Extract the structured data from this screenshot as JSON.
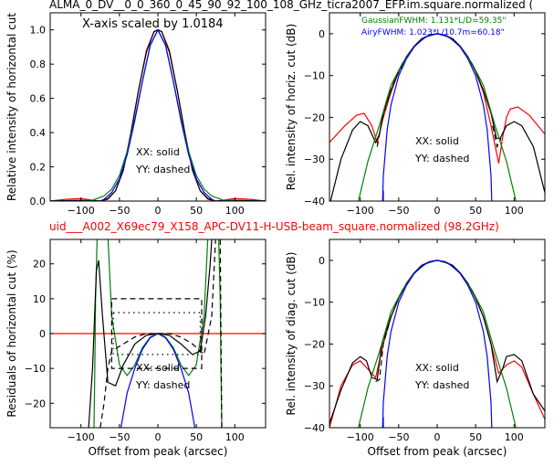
{
  "figure": {
    "top_title": "ALMA_0_DV__0_0_360_0_45_90_92_100_108_GHz_ticra2007_EFP.im.square.normalized (",
    "middle_title": "uid___A002_X69ec79_X158_APC-DV11-H-USB-beam_square.normalized (98.2GHz)",
    "middle_title_color": "#ff0000"
  },
  "colors": {
    "black": "#000000",
    "red": "#ff0000",
    "green": "#008000",
    "blue": "#0000ff"
  },
  "chart_data": [
    {
      "type": "line",
      "panel": "top-left",
      "annotation": "X-axis scaled by 1.0184",
      "xlabel": "",
      "ylabel": "Relative intensity of horizontal cut",
      "xlim": [
        -140,
        140
      ],
      "ylim": [
        0,
        1.1
      ],
      "xticks": [
        -100,
        -50,
        0,
        50,
        100
      ],
      "yticks": [
        0.0,
        0.2,
        0.4,
        0.6,
        0.8,
        1.0
      ],
      "xtick_labels": [
        "−100",
        "−50",
        "0",
        "50",
        "100"
      ],
      "ytick_labels": [
        "0.0",
        "0.2",
        "0.4",
        "0.6",
        "0.8",
        "1.0"
      ],
      "legend_text": [
        "XX: solid",
        "YY: dashed"
      ],
      "series": [
        {
          "color": "red",
          "style": "solid",
          "x": [
            -140,
            -120,
            -100,
            -85,
            -75,
            -65,
            -55,
            -45,
            -35,
            -25,
            -15,
            -5,
            0,
            5,
            15,
            25,
            35,
            45,
            55,
            65,
            75,
            85,
            100,
            120,
            140
          ],
          "y": [
            0.0,
            0.01,
            0.015,
            0.005,
            0.0,
            0.01,
            0.06,
            0.18,
            0.4,
            0.65,
            0.88,
            0.99,
            1.0,
            0.99,
            0.88,
            0.65,
            0.4,
            0.18,
            0.06,
            0.01,
            0.0,
            0.005,
            0.015,
            0.01,
            0.0
          ]
        },
        {
          "color": "black",
          "style": "solid",
          "x": [
            -140,
            -100,
            -85,
            -75,
            -65,
            -55,
            -45,
            -35,
            -25,
            -15,
            -5,
            0,
            5,
            15,
            25,
            35,
            45,
            55,
            65,
            75,
            85,
            100,
            140
          ],
          "y": [
            0.0,
            0.005,
            0.002,
            0.0,
            0.015,
            0.06,
            0.18,
            0.4,
            0.65,
            0.87,
            0.99,
            1.0,
            0.99,
            0.87,
            0.65,
            0.4,
            0.18,
            0.06,
            0.015,
            0.0,
            0.002,
            0.005,
            0.0
          ]
        },
        {
          "color": "green",
          "style": "solid",
          "x": [
            -140,
            -100,
            -85,
            -70,
            -60,
            -50,
            -40,
            -30,
            -20,
            -10,
            0,
            10,
            20,
            30,
            40,
            50,
            60,
            70,
            85,
            100,
            140
          ],
          "y": [
            0.0,
            0.0,
            0.005,
            0.03,
            0.07,
            0.15,
            0.29,
            0.48,
            0.7,
            0.91,
            1.0,
            0.91,
            0.7,
            0.48,
            0.29,
            0.15,
            0.07,
            0.03,
            0.005,
            0.0,
            0.0
          ]
        },
        {
          "color": "blue",
          "style": "solid",
          "x": [
            -140,
            -75,
            -70,
            -60,
            -50,
            -40,
            -30,
            -20,
            -10,
            0,
            10,
            20,
            30,
            40,
            50,
            60,
            70,
            75,
            140
          ],
          "y": [
            0.0,
            0.0,
            0.01,
            0.05,
            0.13,
            0.27,
            0.47,
            0.7,
            0.91,
            1.0,
            0.91,
            0.7,
            0.47,
            0.27,
            0.13,
            0.05,
            0.01,
            0.0,
            0.0
          ]
        }
      ]
    },
    {
      "type": "line",
      "panel": "top-right",
      "xlabel": "",
      "ylabel": "Rel. intensity of horiz. cut (dB)",
      "xlim": [
        -140,
        140
      ],
      "ylim": [
        -40,
        5
      ],
      "xticks": [
        -100,
        -50,
        0,
        50,
        100
      ],
      "yticks": [
        0,
        -10,
        -20,
        -30,
        -40
      ],
      "xtick_labels": [
        "−100",
        "−50",
        "0",
        "50",
        "100"
      ],
      "ytick_labels": [
        "0",
        "−10",
        "−20",
        "−30",
        "−40"
      ],
      "fit_labels": [
        {
          "text": "GaussianFWHM: 1.131*L/D=59.35\"",
          "color": "green"
        },
        {
          "text": "AiryFWHM: 1.023*L/10.7m=60.18\"",
          "color": "blue"
        }
      ],
      "legend_text": [
        "XX: solid",
        "YY: dashed"
      ],
      "series": [
        {
          "color": "red",
          "style": "solid",
          "x": [
            -140,
            -120,
            -105,
            -95,
            -85,
            -78,
            -70,
            -60,
            -50,
            -40,
            -30,
            -20,
            -10,
            0,
            10,
            20,
            30,
            40,
            50,
            60,
            70,
            80,
            85,
            90,
            95,
            105,
            120,
            140
          ],
          "y": [
            -26,
            -22,
            -19.5,
            -19,
            -22,
            -26,
            -20,
            -14,
            -9,
            -5.5,
            -3,
            -1.2,
            -0.3,
            0,
            -0.3,
            -1.2,
            -3,
            -5.5,
            -9,
            -14,
            -22,
            -31,
            -25,
            -20,
            -18,
            -17.5,
            -19.5,
            -24
          ]
        },
        {
          "color": "black",
          "style": "solid",
          "x": [
            -140,
            -125,
            -110,
            -100,
            -90,
            -80,
            -75,
            -70,
            -60,
            -50,
            -40,
            -30,
            -20,
            -10,
            0,
            10,
            20,
            30,
            40,
            50,
            60,
            70,
            77,
            82,
            90,
            100,
            110,
            125,
            140
          ],
          "y": [
            -41,
            -30,
            -23,
            -21,
            -22,
            -26,
            -24,
            -19,
            -13.5,
            -9,
            -5.5,
            -3,
            -1.2,
            -0.3,
            0,
            -0.3,
            -1.2,
            -3,
            -5.5,
            -9,
            -13.5,
            -19,
            -25,
            -25,
            -22,
            -21,
            -22,
            -27,
            -38
          ]
        },
        {
          "color": "black",
          "style": "dashed",
          "x": [
            -78,
            -72,
            -65,
            -55,
            -45
          ],
          "y": [
            -27,
            -21,
            -16,
            -11,
            -7.5
          ]
        },
        {
          "color": "black",
          "style": "dashed",
          "x": [
            72,
            78,
            83
          ],
          "y": [
            -22,
            -27,
            -25
          ]
        },
        {
          "color": "green",
          "style": "solid",
          "x": [
            -105,
            -90,
            -75,
            -60,
            -45,
            -30,
            -15,
            0,
            15,
            30,
            45,
            60,
            75,
            90,
            105
          ],
          "y": [
            -42,
            -30.5,
            -21.8,
            -12.3,
            -7,
            -3.1,
            -0.8,
            0,
            -0.8,
            -3.1,
            -7,
            -12.3,
            -21.8,
            -30.5,
            -42
          ]
        },
        {
          "color": "blue",
          "style": "solid",
          "x": [
            -71,
            -70,
            -65,
            -60,
            -50,
            -40,
            -30,
            -20,
            -10,
            0,
            10,
            20,
            30,
            40,
            50,
            60,
            65,
            70,
            71
          ],
          "y": [
            -40,
            -34,
            -23,
            -17,
            -10,
            -6,
            -3.2,
            -1.4,
            -0.35,
            0,
            -0.35,
            -1.4,
            -3.2,
            -6,
            -10,
            -17,
            -23,
            -34,
            -40
          ]
        },
        {
          "color": "blue",
          "style": "solid",
          "x": [
            -70,
            -70
          ],
          "y": [
            -40,
            -37.5
          ]
        }
      ]
    },
    {
      "type": "line",
      "panel": "bottom-left",
      "xlabel": "Offset from peak (arcsec)",
      "ylabel": "Residuals of horizontal cut (%)",
      "xlim": [
        -140,
        140
      ],
      "ylim": [
        -27,
        27
      ],
      "xticks": [
        -100,
        -50,
        0,
        50,
        100
      ],
      "yticks": [
        20,
        10,
        0,
        -10,
        -20
      ],
      "xtick_labels": [
        "−100",
        "−50",
        "0",
        "50",
        "100"
      ],
      "ytick_labels": [
        "20",
        "10",
        "0",
        "−10",
        "−20"
      ],
      "legend_text": [
        "XX: solid",
        "YY: dashed"
      ],
      "series": [
        {
          "color": "red",
          "style": "solid",
          "x": [
            -140,
            140
          ],
          "y": [
            0,
            0
          ]
        },
        {
          "color": "green",
          "style": "solid",
          "x": [
            -65,
            -60,
            -50,
            -40,
            -30,
            -20,
            -10,
            0,
            10,
            20,
            30,
            40,
            50,
            60,
            65
          ],
          "y": [
            28,
            5,
            -9,
            -12,
            -9,
            -4,
            -1,
            0,
            -1,
            -4,
            -9,
            -12,
            -9,
            5,
            28
          ]
        },
        {
          "color": "green",
          "style": "solid",
          "x": [
            -83,
            -82,
            -81,
            -79
          ],
          "y": [
            -27,
            -10,
            10,
            27
          ]
        },
        {
          "color": "green",
          "style": "solid",
          "x": [
            79,
            81,
            82,
            83
          ],
          "y": [
            27,
            10,
            -10,
            -27
          ]
        },
        {
          "color": "blue",
          "style": "solid",
          "x": [
            -48,
            -40,
            -30,
            -20,
            -10,
            0,
            10,
            20,
            30,
            40,
            48
          ],
          "y": [
            -27,
            -17,
            -10,
            -4.5,
            -1.2,
            0,
            -1.2,
            -4.5,
            -10,
            -17,
            -27
          ]
        },
        {
          "color": "black",
          "style": "solid",
          "x": [
            -90,
            -85,
            -80,
            -77,
            -72,
            -65,
            -55,
            -45,
            -30,
            -15,
            0,
            15,
            30,
            45,
            55,
            62,
            68,
            70,
            72
          ],
          "y": [
            -27,
            -10,
            18,
            21,
            5,
            -14,
            -15,
            -9,
            -3,
            -0.5,
            0,
            -0.5,
            -3,
            -6,
            -5,
            5,
            20,
            27,
            27
          ]
        },
        {
          "color": "black",
          "style": "dashed",
          "x": [
            -75,
            -70,
            -65,
            -60,
            -45,
            -30,
            -15,
            0,
            15,
            30,
            45,
            60,
            70,
            75
          ],
          "y": [
            -27,
            -20,
            -10,
            -5,
            -3,
            -1,
            0,
            0,
            0,
            -1,
            -3,
            -6,
            5,
            27
          ]
        },
        {
          "color": "black",
          "style": "dashed",
          "x": [
            -60,
            57,
            57,
            -60,
            -60
          ],
          "y": [
            10,
            10,
            -10,
            -10,
            10
          ]
        },
        {
          "color": "black",
          "style": "dotted",
          "x": [
            -58,
            55,
            55,
            -58,
            -58
          ],
          "y": [
            6,
            6,
            -6,
            -6,
            6
          ]
        },
        {
          "color": "black",
          "style": "dashed",
          "x": [
            81,
            82,
            83
          ],
          "y": [
            27,
            0,
            -27
          ]
        }
      ]
    },
    {
      "type": "line",
      "panel": "bottom-right",
      "xlabel": "Offset from peak (arcsec)",
      "ylabel": "Rel. intensity of diag. cut (dB)",
      "xlim": [
        -140,
        140
      ],
      "ylim": [
        -40,
        5
      ],
      "xticks": [
        -100,
        -50,
        0,
        50,
        100
      ],
      "yticks": [
        0,
        -10,
        -20,
        -30,
        -40
      ],
      "xtick_labels": [
        "−100",
        "−50",
        "0",
        "50",
        "100"
      ],
      "ytick_labels": [
        "0",
        "−10",
        "−20",
        "−30",
        "−40"
      ],
      "legend_text": [
        "XX: solid",
        "YY: dashed"
      ],
      "series": [
        {
          "color": "red",
          "style": "solid",
          "x": [
            -140,
            -125,
            -110,
            -100,
            -90,
            -80,
            -70,
            -60,
            -50,
            -40,
            -30,
            -20,
            -10,
            0,
            10,
            20,
            30,
            40,
            50,
            60,
            70,
            80,
            90,
            100,
            110,
            125,
            140
          ],
          "y": [
            -40,
            -30,
            -25,
            -24,
            -26,
            -28,
            -20,
            -13.5,
            -9,
            -5.5,
            -3,
            -1.2,
            -0.3,
            0,
            -0.3,
            -1.2,
            -3,
            -5.5,
            -9,
            -13.5,
            -20,
            -27,
            -25,
            -24,
            -25.5,
            -32,
            -38
          ]
        },
        {
          "color": "black",
          "style": "solid",
          "x": [
            -140,
            -125,
            -110,
            -100,
            -92,
            -85,
            -78,
            -72,
            -60,
            -50,
            -40,
            -30,
            -20,
            -10,
            0,
            10,
            20,
            30,
            40,
            50,
            60,
            70,
            78,
            85,
            90,
            100,
            110,
            125,
            140
          ],
          "y": [
            -39,
            -31,
            -24.5,
            -23,
            -24,
            -28,
            -28.5,
            -20,
            -13.5,
            -9,
            -5.5,
            -3,
            -1.2,
            -0.3,
            0,
            -0.3,
            -1.2,
            -3,
            -5.5,
            -9,
            -13.5,
            -20,
            -29,
            -26,
            -23,
            -22.5,
            -24,
            -32,
            -36
          ]
        },
        {
          "color": "black",
          "style": "dashed",
          "x": [
            -80,
            -75,
            -70,
            -60
          ],
          "y": [
            -29,
            -28.5,
            -20,
            -13.5
          ]
        },
        {
          "color": "green",
          "style": "solid",
          "x": [
            -105,
            -90,
            -75,
            -60,
            -45,
            -30,
            -15,
            0,
            15,
            30,
            45,
            60,
            75,
            90,
            105
          ],
          "y": [
            -42,
            -30.5,
            -21.8,
            -12.3,
            -7,
            -3.1,
            -0.8,
            0,
            -0.8,
            -3.1,
            -7,
            -12.3,
            -21.8,
            -30.5,
            -42
          ]
        },
        {
          "color": "blue",
          "style": "solid",
          "x": [
            -71,
            -70,
            -65,
            -60,
            -50,
            -40,
            -30,
            -20,
            -10,
            0,
            10,
            20,
            30,
            40,
            50,
            60,
            65,
            70,
            71
          ],
          "y": [
            -40,
            -34,
            -23,
            -17,
            -10,
            -6,
            -3.2,
            -1.4,
            -0.35,
            0,
            -0.35,
            -1.4,
            -3.2,
            -6,
            -10,
            -17,
            -23,
            -34,
            -40
          ]
        },
        {
          "color": "blue",
          "style": "solid",
          "x": [
            -70,
            -70
          ],
          "y": [
            -40,
            -37.5
          ]
        }
      ]
    }
  ]
}
